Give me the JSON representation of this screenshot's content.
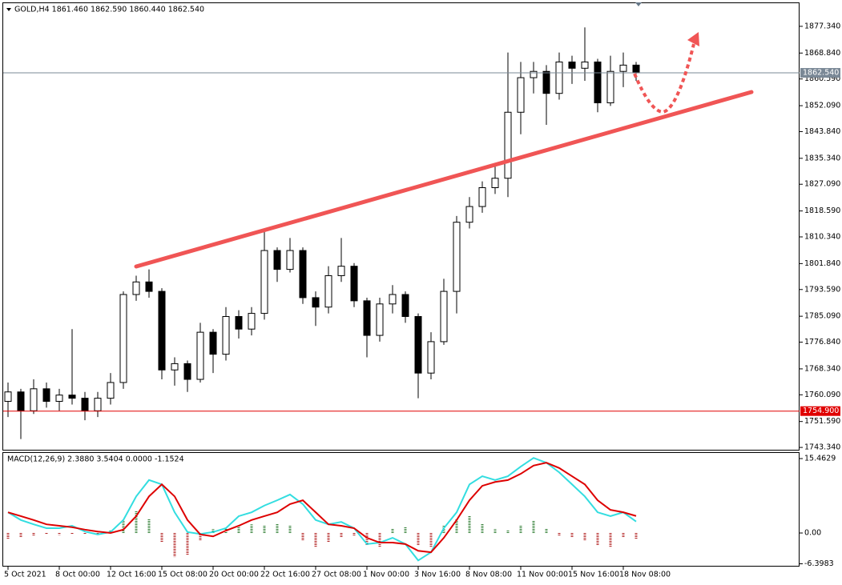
{
  "chart_data": [
    {
      "type": "candlestick",
      "title": "GOLD,H4  1861.460 1862.590 1860.440 1862.540",
      "categories": [
        "5 Oct 2021",
        null,
        null,
        null,
        "8 Oct 00:00",
        null,
        null,
        null,
        "12 Oct 16:00",
        null,
        null,
        null,
        "15 Oct 08:00",
        null,
        null,
        null,
        "20 Oct 00:00",
        null,
        null,
        null,
        "22 Oct 16:00",
        null,
        null,
        null,
        "27 Oct 08:00",
        null,
        null,
        null,
        "1 Nov 00:00",
        null,
        null,
        null,
        "3 Nov 16:00",
        null,
        null,
        null,
        "8 Nov 08:00",
        null,
        null,
        null,
        "11 Nov 00:00",
        null,
        null,
        null,
        "15 Nov 16:00",
        null,
        null,
        null,
        "18 Nov 08:00",
        null
      ],
      "open": [
        1758,
        1761,
        1755,
        1762,
        1758,
        1760,
        1759,
        1755,
        1759,
        1764,
        1792,
        1796,
        1793,
        1768,
        1770,
        1765,
        1780,
        1773,
        1785,
        1781,
        1786,
        1806,
        1800,
        1806,
        1791,
        1788,
        1798,
        1801,
        1790,
        1779,
        1789,
        1792,
        1785,
        1767,
        1777,
        1793,
        1815,
        1820,
        1826,
        1829,
        1850,
        1861,
        1863,
        1856,
        1866,
        1864,
        1866,
        1853,
        1863,
        1865
      ],
      "high": [
        1764,
        1762,
        1765,
        1764,
        1762,
        1781,
        1761,
        1761,
        1767,
        1793,
        1798,
        1800,
        1794,
        1772,
        1771,
        1783,
        1781,
        1788,
        1787,
        1788,
        1813,
        1807,
        1810,
        1807,
        1793,
        1801,
        1810,
        1802,
        1791,
        1791,
        1795,
        1793,
        1786,
        1780,
        1797,
        1817,
        1823,
        1828,
        1833,
        1869,
        1866,
        1866,
        1865,
        1869,
        1868,
        1877,
        1867,
        1868,
        1869,
        1866
      ],
      "low": [
        1753,
        1746,
        1754,
        1756,
        1755,
        1757,
        1752,
        1753,
        1757,
        1762,
        1790,
        1791,
        1765,
        1763,
        1761,
        1764,
        1767,
        1771,
        1778,
        1779,
        1784,
        1796,
        1799,
        1789,
        1782,
        1786,
        1796,
        1788,
        1772,
        1777,
        1786,
        1783,
        1759,
        1765,
        1776,
        1786,
        1813,
        1818,
        1824,
        1823,
        1843,
        1856,
        1846,
        1854,
        1859,
        1860,
        1850,
        1852,
        1858,
        1860
      ],
      "close": [
        1761,
        1755,
        1762,
        1758,
        1760,
        1759,
        1755,
        1759,
        1764,
        1792,
        1796,
        1793,
        1768,
        1770,
        1765,
        1780,
        1773,
        1785,
        1781,
        1786,
        1806,
        1800,
        1806,
        1791,
        1788,
        1798,
        1801,
        1790,
        1779,
        1789,
        1792,
        1785,
        1767,
        1777,
        1793,
        1815,
        1820,
        1826,
        1829,
        1850,
        1861,
        1863,
        1856,
        1866,
        1864,
        1866,
        1853,
        1863,
        1865,
        1862.54
      ],
      "up_color": "#ffffff",
      "down_color": "#000000",
      "wick_color": "#000000",
      "ylim": [
        1742.6,
        1884.7
      ],
      "yticks": [
        {
          "value": 1877.34,
          "label": "1877.340"
        },
        {
          "value": 1868.84,
          "label": "1868.840"
        },
        {
          "value": 1860.59,
          "label": "1860.590"
        },
        {
          "value": 1852.09,
          "label": "1852.090"
        },
        {
          "value": 1843.84,
          "label": "1843.840"
        },
        {
          "value": 1835.34,
          "label": "1835.340"
        },
        {
          "value": 1827.09,
          "label": "1827.090"
        },
        {
          "value": 1818.59,
          "label": "1818.590"
        },
        {
          "value": 1810.34,
          "label": "1810.340"
        },
        {
          "value": 1801.84,
          "label": "1801.840"
        },
        {
          "value": 1793.59,
          "label": "1793.590"
        },
        {
          "value": 1785.09,
          "label": "1785.090"
        },
        {
          "value": 1776.84,
          "label": "1776.840"
        },
        {
          "value": 1768.34,
          "label": "1768.340"
        },
        {
          "value": 1760.09,
          "label": "1760.090"
        },
        {
          "value": 1751.59,
          "label": "1751.590"
        },
        {
          "value": 1743.34,
          "label": "1743.340"
        }
      ],
      "hlines": [
        {
          "value": 1862.54,
          "label": "1862.540",
          "color": "#7a8896"
        },
        {
          "value": 1754.9,
          "label": "1754.900",
          "color": "#e00000"
        }
      ]
    },
    {
      "type": "macd",
      "title": "MACD(12,26,9) 2.3880 3.5404 0.0000 -1.1524",
      "histogram": {
        "values": [
          -1.2,
          -1.0,
          -0.5,
          -0.3,
          -0.4,
          -0.2,
          -0.3,
          -0.4,
          0.5,
          2.5,
          4.5,
          3.0,
          -2.0,
          -5.0,
          -4.5,
          -1.5,
          0.8,
          1.0,
          1.5,
          1.8,
          1.5,
          2.0,
          1.5,
          -1.5,
          -3.0,
          -2.0,
          -1.0,
          -0.5,
          -2.5,
          -3.0,
          1.0,
          1.2,
          -2.5,
          -3.0,
          1.5,
          3.0,
          3.5,
          2.0,
          0.8,
          0.5,
          1.5,
          2.5,
          1.0,
          -0.5,
          -1.0,
          -1.5,
          -2.5,
          -3.0,
          -1.0,
          -1.1524
        ],
        "pos_color": "#2e7d32",
        "neg_color": "#b22222"
      },
      "series": [
        {
          "color": "#33dde0",
          "values": [
            4.3,
            2.7,
            1.8,
            1.0,
            1.0,
            1.5,
            0.3,
            -0.3,
            0.2,
            2.7,
            7.6,
            11.0,
            10.1,
            4.3,
            0.2,
            -0.2,
            0.2,
            1.0,
            3.5,
            4.3,
            5.7,
            6.8,
            8.0,
            6.0,
            2.7,
            1.8,
            2.3,
            1.0,
            -2.3,
            -2.0,
            -1.0,
            -2.3,
            -5.7,
            -4.0,
            1.0,
            4.3,
            10.1,
            11.8,
            11.0,
            11.8,
            13.8,
            15.6,
            14.6,
            12.6,
            10.1,
            7.6,
            4.3,
            3.5,
            4.3,
            2.388
          ]
        },
        {
          "color": "#dd0000",
          "values": [
            4.3,
            3.5,
            2.7,
            1.8,
            1.5,
            1.2,
            0.7,
            0.3,
            0,
            0.7,
            3.5,
            7.6,
            10.1,
            7.6,
            2.7,
            -0.3,
            -0.7,
            0.5,
            1.5,
            2.7,
            3.5,
            4.3,
            6.0,
            6.8,
            4.3,
            1.8,
            1.5,
            1.0,
            -1.0,
            -2.0,
            -2.0,
            -2.3,
            -3.7,
            -4.0,
            -1.0,
            2.7,
            6.8,
            9.8,
            10.6,
            11.0,
            12.3,
            14.0,
            14.6,
            13.5,
            11.8,
            10.1,
            6.8,
            4.8,
            4.3,
            3.5404
          ]
        }
      ],
      "ylim": [
        -6.98,
        16.63
      ],
      "yticks": [
        {
          "value": 15.4629,
          "label": "15.4629"
        },
        {
          "value": 0,
          "label": "0.00"
        },
        {
          "value": -6.3983,
          "label": "-6.3983"
        }
      ]
    }
  ]
}
